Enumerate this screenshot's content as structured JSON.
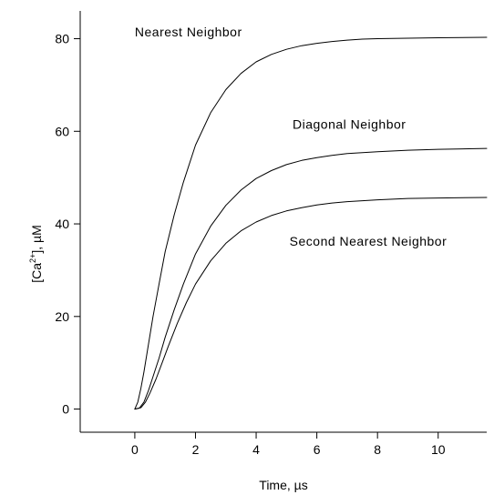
{
  "chart_data": {
    "type": "line",
    "xlabel": "Time, µs",
    "ylabel_main": "[Ca",
    "ylabel_sup": "2+",
    "ylabel_tail": "], µM",
    "xlim": [
      -1.8,
      11.6
    ],
    "ylim": [
      -5,
      86
    ],
    "xticks": [
      0,
      2,
      4,
      6,
      8,
      10
    ],
    "yticks": [
      0,
      20,
      40,
      60,
      80
    ],
    "grid": false,
    "series": [
      {
        "name": "Nearest Neighbor",
        "x": [
          0,
          0.1,
          0.2,
          0.3,
          0.45,
          0.6,
          0.8,
          1.0,
          1.3,
          1.6,
          2.0,
          2.5,
          3.0,
          3.5,
          4.0,
          4.5,
          5.0,
          5.5,
          6.0,
          6.5,
          7.0,
          7.5,
          8.0,
          9.0,
          10.0,
          11.6
        ],
        "y": [
          0,
          1.5,
          4.5,
          8,
          14,
          20,
          27,
          34,
          42,
          49,
          57,
          64,
          69,
          72.5,
          75,
          76.6,
          77.7,
          78.5,
          79.0,
          79.4,
          79.7,
          79.9,
          80.0,
          80.1,
          80.2,
          80.3
        ]
      },
      {
        "name": "Diagonal Neighbor",
        "x": [
          0,
          0.15,
          0.3,
          0.45,
          0.6,
          0.8,
          1.0,
          1.3,
          1.6,
          2.0,
          2.5,
          3.0,
          3.5,
          4.0,
          4.5,
          5.0,
          5.5,
          6.0,
          6.5,
          7.0,
          8.0,
          9.0,
          10.0,
          11.6
        ],
        "y": [
          0,
          0.2,
          1.5,
          4,
          7,
          11,
          15.5,
          21.5,
          27,
          33.5,
          39.5,
          44,
          47.3,
          49.8,
          51.5,
          52.8,
          53.7,
          54.3,
          54.8,
          55.2,
          55.6,
          55.9,
          56.1,
          56.3
        ]
      },
      {
        "name": "Second Nearest Neighbor",
        "x": [
          0,
          0.2,
          0.35,
          0.5,
          0.7,
          0.9,
          1.1,
          1.4,
          1.7,
          2.0,
          2.5,
          3.0,
          3.5,
          4.0,
          4.5,
          5.0,
          5.5,
          6.0,
          6.5,
          7.0,
          8.0,
          9.0,
          10.0,
          11.6
        ],
        "y": [
          0,
          0.3,
          1.5,
          3.5,
          6.5,
          10,
          13.5,
          18.5,
          23,
          27,
          32,
          35.8,
          38.5,
          40.4,
          41.8,
          42.8,
          43.5,
          44.1,
          44.5,
          44.8,
          45.2,
          45.5,
          45.6,
          45.7
        ]
      }
    ],
    "annotations": [
      {
        "text": "Nearest Neighbor",
        "x": 0,
        "y": 80.5
      },
      {
        "text": "Diagonal Neighbor",
        "x": 5.2,
        "y": 60.5
      },
      {
        "text": "Second Nearest Neighbor",
        "x": 5.1,
        "y": 35.3
      }
    ]
  }
}
